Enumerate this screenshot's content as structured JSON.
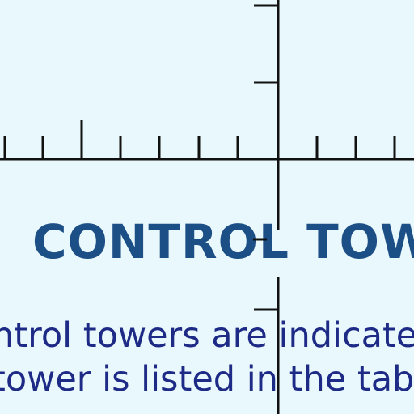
{
  "heading": "CONTROL TOWER",
  "body_lines": [
    "ntrol towers are indicated o",
    "tower is listed in the table"
  ],
  "colors": {
    "background": "#e9f8fc",
    "grid_lines": "#111111",
    "heading": "#1c4f86",
    "body_text": "#1d2a86"
  }
}
